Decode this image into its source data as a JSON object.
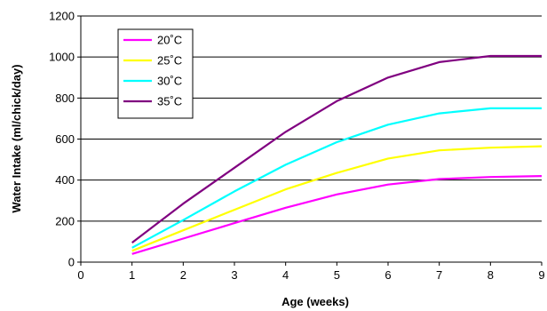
{
  "chart_data": {
    "type": "line",
    "title": "",
    "xlabel": "Age (weeks)",
    "ylabel": "Water Intake (ml/chick/day)",
    "xlim": [
      0,
      9
    ],
    "ylim": [
      0,
      1200
    ],
    "x_ticks": [
      0,
      1,
      2,
      3,
      4,
      5,
      6,
      7,
      8,
      9
    ],
    "y_ticks": [
      0,
      200,
      400,
      600,
      800,
      1000,
      1200
    ],
    "grid": "horizontal",
    "legend_position": "top-left",
    "x": [
      1,
      2,
      3,
      4,
      5,
      6,
      7,
      8,
      9
    ],
    "series": [
      {
        "name": "20˚C",
        "color": "#ff00ff",
        "values": [
          40,
          115,
          190,
          265,
          330,
          378,
          405,
          415,
          420
        ]
      },
      {
        "name": "25˚C",
        "color": "#ffff00",
        "values": [
          55,
          155,
          255,
          355,
          435,
          505,
          545,
          558,
          565
        ]
      },
      {
        "name": "30˚C",
        "color": "#00ffff",
        "values": [
          70,
          205,
          345,
          475,
          585,
          670,
          725,
          750,
          750
        ]
      },
      {
        "name": "35˚C",
        "color": "#800080",
        "values": [
          95,
          285,
          460,
          635,
          785,
          900,
          975,
          1005,
          1005
        ]
      }
    ]
  }
}
